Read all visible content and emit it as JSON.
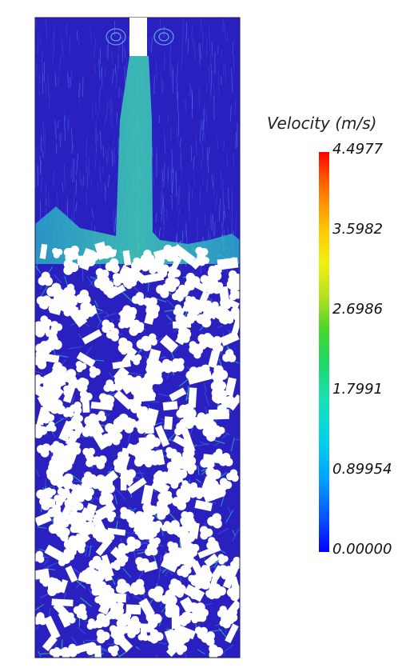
{
  "legend": {
    "title": "Velocity (m/s)",
    "ticks": [
      {
        "label": "4.4977",
        "value": 4.4977
      },
      {
        "label": "3.5982",
        "value": 3.5982
      },
      {
        "label": "2.6986",
        "value": 2.6986
      },
      {
        "label": "1.7991",
        "value": 1.7991
      },
      {
        "label": "0.89954",
        "value": 0.89954
      },
      {
        "label": "0.00000",
        "value": 0.0
      }
    ],
    "colors": [
      "#0000ff",
      "#0a4cff",
      "#00a0ff",
      "#00d2e8",
      "#18e0b8",
      "#20d860",
      "#4cd62a",
      "#b8e020",
      "#f0f010",
      "#ffcc00",
      "#ff8c00",
      "#ff5000",
      "#ff0000"
    ]
  },
  "scene": {
    "background_color": "#2a1fbf",
    "jet_color": "#35c8b0",
    "particle_color": "#ffffff"
  }
}
